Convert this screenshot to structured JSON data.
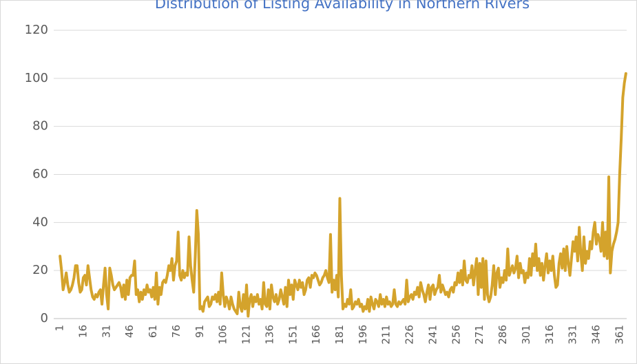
{
  "chart_data": {
    "type": "line",
    "title": "Distribution of Listing Availability in Northern Rivers",
    "categories": [
      1,
      null,
      null,
      null,
      null,
      null,
      null,
      null,
      null,
      null,
      null,
      null,
      null,
      null,
      null,
      16,
      null,
      null,
      null,
      null,
      null,
      null,
      null,
      null,
      null,
      null,
      null,
      null,
      null,
      null,
      31,
      null,
      null,
      null,
      null,
      null,
      null,
      null,
      null,
      null,
      null,
      null,
      null,
      null,
      null,
      46,
      null,
      null,
      null,
      null,
      null,
      null,
      null,
      null,
      null,
      null,
      null,
      null,
      null,
      null,
      61,
      null,
      null,
      null,
      null,
      null,
      null,
      null,
      null,
      null,
      null,
      null,
      null,
      null,
      null,
      76,
      null,
      null,
      null,
      null,
      null,
      null,
      null,
      null,
      null,
      null,
      null,
      null,
      null,
      null,
      91,
      null,
      null,
      null,
      null,
      null,
      null,
      null,
      null,
      null,
      null,
      null,
      null,
      null,
      null,
      106,
      null,
      null,
      null,
      null,
      null,
      null,
      null,
      null,
      null,
      null,
      null,
      null,
      null,
      null,
      121,
      null,
      null,
      null,
      null,
      null,
      null,
      null,
      null,
      null,
      null,
      null,
      null,
      null,
      null,
      136,
      null,
      null,
      null,
      null,
      null,
      null,
      null,
      null,
      null,
      null,
      null,
      null,
      null,
      null,
      151,
      null,
      null,
      null,
      null,
      null,
      null,
      null,
      null,
      null,
      null,
      null,
      null,
      null,
      null,
      166,
      null,
      null,
      null,
      null,
      null,
      null,
      null,
      null,
      null,
      null,
      null,
      null,
      null,
      null,
      181,
      null,
      null,
      null,
      null,
      null,
      null,
      null,
      null,
      null,
      null,
      null,
      null,
      null,
      null,
      196,
      null,
      null,
      null,
      null,
      null,
      null,
      null,
      null,
      null,
      null,
      null,
      null,
      null,
      null,
      211,
      null,
      null,
      null,
      null,
      null,
      null,
      null,
      null,
      null,
      null,
      null,
      null,
      null,
      null,
      226,
      null,
      null,
      null,
      null,
      null,
      null,
      null,
      null,
      null,
      null,
      null,
      null,
      null,
      null,
      241,
      null,
      null,
      null,
      null,
      null,
      null,
      null,
      null,
      null,
      null,
      null,
      null,
      null,
      null,
      256,
      null,
      null,
      null,
      null,
      null,
      null,
      null,
      null,
      null,
      null,
      null,
      null,
      null,
      null,
      271,
      null,
      null,
      null,
      null,
      null,
      null,
      null,
      null,
      null,
      null,
      null,
      null,
      null,
      null,
      286,
      null,
      null,
      null,
      null,
      null,
      null,
      null,
      null,
      null,
      null,
      null,
      null,
      null,
      null,
      301,
      null,
      null,
      null,
      null,
      null,
      null,
      null,
      null,
      null,
      null,
      null,
      null,
      null,
      null,
      316,
      null,
      null,
      null,
      null,
      null,
      null,
      null,
      null,
      null,
      null,
      null,
      null,
      null,
      null,
      331,
      null,
      null,
      null,
      null,
      null,
      null,
      null,
      null,
      null,
      null,
      null,
      null,
      null,
      null,
      346,
      null,
      null,
      null,
      null,
      null,
      null,
      null,
      null,
      null,
      null,
      null,
      null,
      null,
      null,
      361,
      null,
      null,
      null,
      null
    ],
    "values": [
      26,
      20,
      12,
      15,
      19,
      14,
      11,
      12,
      14,
      17,
      22,
      22,
      15,
      11,
      12,
      17,
      18,
      14,
      22,
      17,
      12,
      9,
      8,
      10,
      9,
      11,
      12,
      6,
      14,
      21,
      10,
      4,
      21,
      18,
      14,
      12,
      13,
      14,
      15,
      13,
      9,
      14,
      8,
      16,
      10,
      17,
      18,
      18,
      24,
      10,
      12,
      7,
      11,
      8,
      12,
      10,
      14,
      11,
      12,
      9,
      13,
      8,
      19,
      6,
      13,
      10,
      15,
      16,
      15,
      18,
      22,
      20,
      25,
      16,
      22,
      24,
      36,
      18,
      16,
      20,
      17,
      19,
      18,
      34,
      22,
      16,
      11,
      26,
      45,
      35,
      4,
      5,
      3,
      7,
      8,
      9,
      5,
      6,
      9,
      8,
      10,
      7,
      11,
      6,
      19,
      10,
      5,
      9,
      7,
      4,
      9,
      6,
      4,
      3,
      2,
      11,
      5,
      3,
      10,
      4,
      14,
      1,
      8,
      10,
      5,
      9,
      7,
      10,
      6,
      8,
      4,
      15,
      6,
      5,
      12,
      4,
      14,
      9,
      7,
      10,
      6,
      8,
      12,
      9,
      6,
      13,
      5,
      16,
      10,
      14,
      8,
      16,
      14,
      12,
      16,
      13,
      15,
      10,
      12,
      16,
      17,
      13,
      18,
      17,
      19,
      18,
      16,
      14,
      15,
      17,
      18,
      20,
      17,
      15,
      35,
      11,
      16,
      12,
      18,
      9,
      50,
      18,
      4,
      6,
      5,
      8,
      6,
      12,
      4,
      5,
      7,
      6,
      8,
      5,
      6,
      3,
      5,
      4,
      8,
      3,
      9,
      6,
      4,
      8,
      7,
      5,
      10,
      6,
      8,
      5,
      9,
      6,
      7,
      5,
      6,
      12,
      6,
      5,
      7,
      6,
      7,
      8,
      6,
      16,
      7,
      9,
      10,
      8,
      11,
      10,
      13,
      9,
      15,
      12,
      10,
      7,
      11,
      14,
      8,
      13,
      14,
      10,
      12,
      13,
      18,
      11,
      14,
      12,
      10,
      11,
      9,
      12,
      13,
      11,
      15,
      14,
      19,
      15,
      20,
      14,
      24,
      16,
      15,
      18,
      17,
      22,
      14,
      20,
      25,
      10,
      23,
      13,
      25,
      8,
      24,
      10,
      7,
      9,
      14,
      22,
      10,
      19,
      21,
      13,
      17,
      15,
      20,
      16,
      29,
      18,
      20,
      22,
      19,
      21,
      26,
      17,
      23,
      19,
      20,
      15,
      19,
      17,
      25,
      18,
      27,
      22,
      31,
      20,
      25,
      18,
      23,
      16,
      22,
      27,
      19,
      24,
      20,
      26,
      18,
      13,
      14,
      23,
      27,
      21,
      29,
      20,
      30,
      23,
      18,
      25,
      32,
      28,
      34,
      24,
      38,
      27,
      20,
      34,
      23,
      28,
      25,
      32,
      29,
      36,
      40,
      31,
      35,
      33,
      28,
      40,
      26,
      36,
      25,
      59,
      19,
      28,
      31,
      33,
      36,
      40,
      60,
      75,
      92,
      98,
      102
    ],
    "color": "#d4a32c",
    "ylim": [
      0,
      120
    ],
    "yticks": [
      0,
      20,
      40,
      60,
      80,
      100,
      120
    ],
    "grid": true
  }
}
